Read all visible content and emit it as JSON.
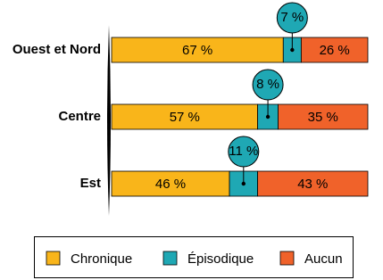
{
  "chart_data": {
    "type": "stacked-bar-horizontal",
    "categories": [
      "Ouest et Nord",
      "Centre",
      "Est"
    ],
    "series": [
      {
        "name": "Chronique",
        "color": "#f9b51a",
        "values": [
          67,
          57,
          46
        ],
        "value_labels": [
          "67 %",
          "57 %",
          "46 %"
        ]
      },
      {
        "name": "Épisodique",
        "color": "#1fa8b4",
        "values": [
          7,
          8,
          11
        ],
        "value_labels": [
          "7 %",
          "8 %",
          "11 %"
        ]
      },
      {
        "name": "Aucun",
        "color": "#f0622a",
        "values": [
          26,
          35,
          43
        ],
        "value_labels": [
          "26 %",
          "35 %",
          "43 %"
        ]
      }
    ],
    "legend": "bottom"
  }
}
